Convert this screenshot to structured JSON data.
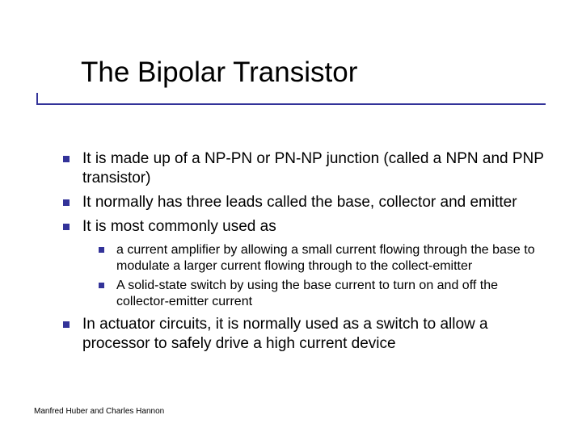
{
  "colors": {
    "accent": "#333399",
    "text": "#000000",
    "background": "#ffffff"
  },
  "typography": {
    "title_fontsize": 35,
    "body_fontsize": 19,
    "sub_fontsize": 16,
    "footer_fontsize": 10,
    "font_family": "Verdana"
  },
  "title": "The Bipolar Transistor",
  "bullets": [
    {
      "text": "It is made up of a NP-PN or PN-NP junction (called a NPN and PNP transistor)"
    },
    {
      "text": "It normally has three leads called the base, collector and emitter"
    },
    {
      "text": "It is most commonly used as",
      "children": [
        {
          "text": "a current amplifier by allowing a small current flowing through the base to modulate a larger current flowing through to the collect-emitter"
        },
        {
          "text": "A solid-state switch by using the base current to turn on and off the collector-emitter current"
        }
      ]
    },
    {
      "text": "In actuator circuits, it is normally used as a switch to allow a processor to safely drive a high current device"
    }
  ],
  "footer": "Manfred Huber and Charles Hannon"
}
